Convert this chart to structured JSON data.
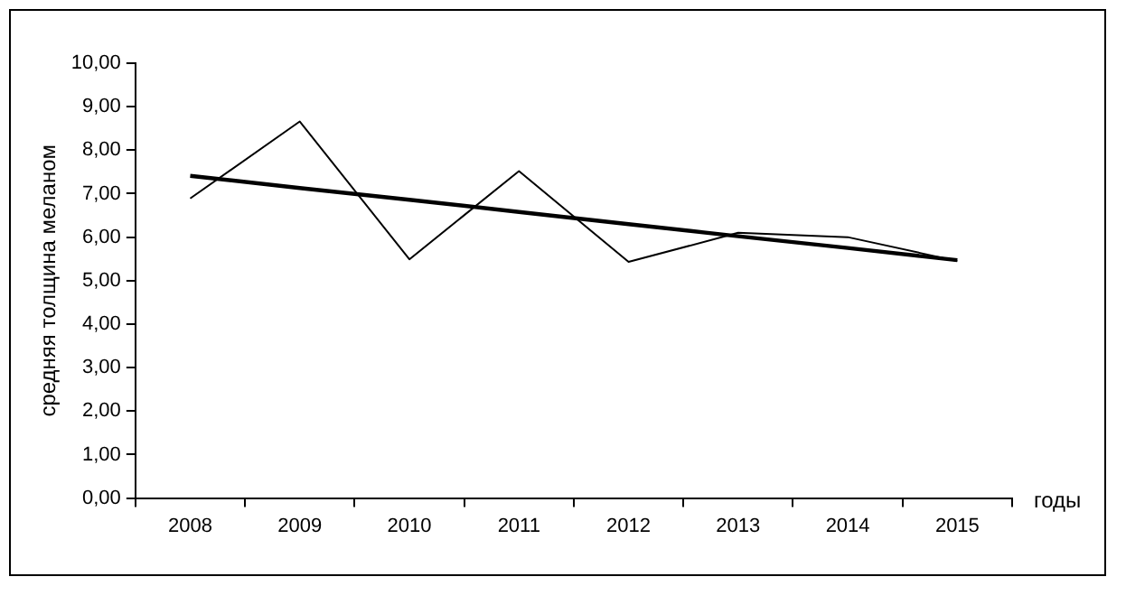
{
  "chart_data": {
    "type": "line",
    "ylabel": "средняя толщина меланом",
    "xlabel": "годы",
    "categories": [
      "2008",
      "2009",
      "2010",
      "2011",
      "2012",
      "2013",
      "2014",
      "2015"
    ],
    "series": [
      {
        "color": "#000000",
        "values": [
          6.89,
          8.66,
          5.49,
          7.52,
          5.43,
          6.1,
          6.0,
          5.45
        ]
      },
      {
        "type": "line",
        "color": "#000000",
        "values": [
          7.41,
          7.13,
          6.86,
          6.58,
          6.3,
          6.02,
          5.75,
          5.47
        ]
      }
    ],
    "ylim": [
      0,
      10
    ],
    "yticks": [
      {
        "value": 0,
        "label": "0,00"
      },
      {
        "value": 1,
        "label": "1,00"
      },
      {
        "value": 2,
        "label": "2,00"
      },
      {
        "value": 3,
        "label": "3,00"
      },
      {
        "value": 4,
        "label": "4,00"
      },
      {
        "value": 5,
        "label": "5,00"
      },
      {
        "value": 6,
        "label": "6,00"
      },
      {
        "value": 7,
        "label": "7,00"
      },
      {
        "value": 8,
        "label": "8,00"
      },
      {
        "value": 9,
        "label": "9,00"
      },
      {
        "value": 10,
        "label": "10,00"
      }
    ],
    "grid": false,
    "legend": false,
    "marker": "none"
  }
}
